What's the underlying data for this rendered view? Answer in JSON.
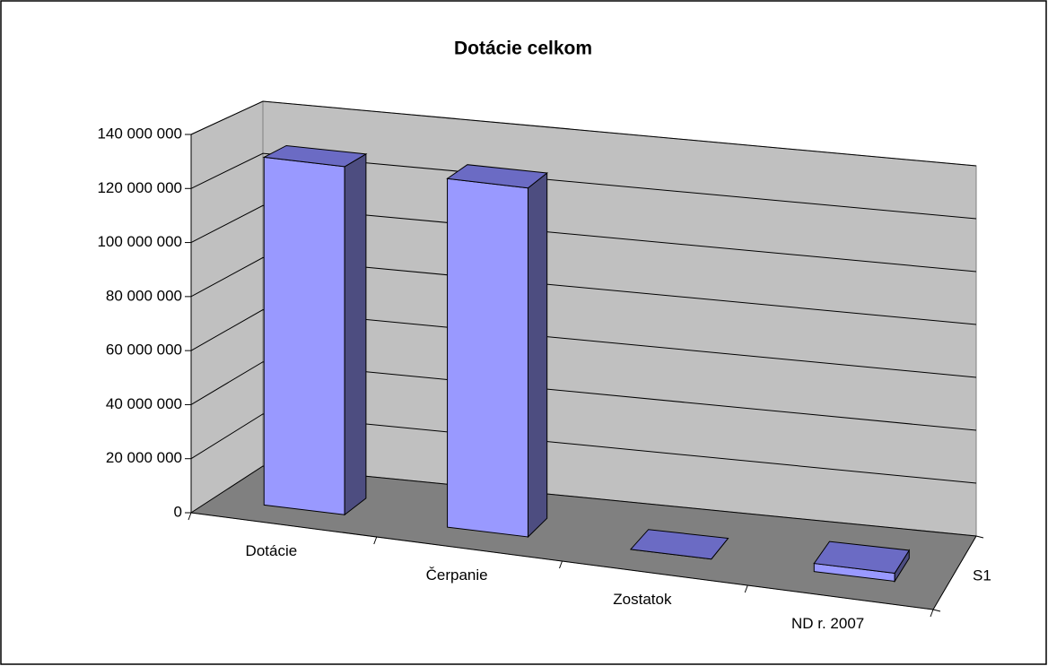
{
  "chart_data": {
    "type": "bar3d",
    "title": "Dotácie celkom",
    "categories": [
      "Dotácie",
      "Čerpanie",
      "Zostatok",
      "ND r. 2007"
    ],
    "series": [
      {
        "name": "S1",
        "color": "#9999ff",
        "values": [
          130000000,
          130000000,
          0,
          3000000
        ]
      }
    ],
    "ylim": [
      0,
      140000000
    ],
    "yticks": [
      0,
      {
        "value": 20000000,
        "label": "20 000 000"
      },
      {
        "value": 40000000,
        "label": "40 000 000"
      },
      {
        "value": 60000000,
        "label": "60 000 000"
      },
      {
        "value": 80000000,
        "label": "80 000 000"
      },
      {
        "value": 100000000,
        "label": "100 000 000"
      },
      {
        "value": 120000000,
        "label": "120 000 000"
      },
      {
        "value": 140000000,
        "label": "140 000 000"
      }
    ],
    "grid": true
  }
}
